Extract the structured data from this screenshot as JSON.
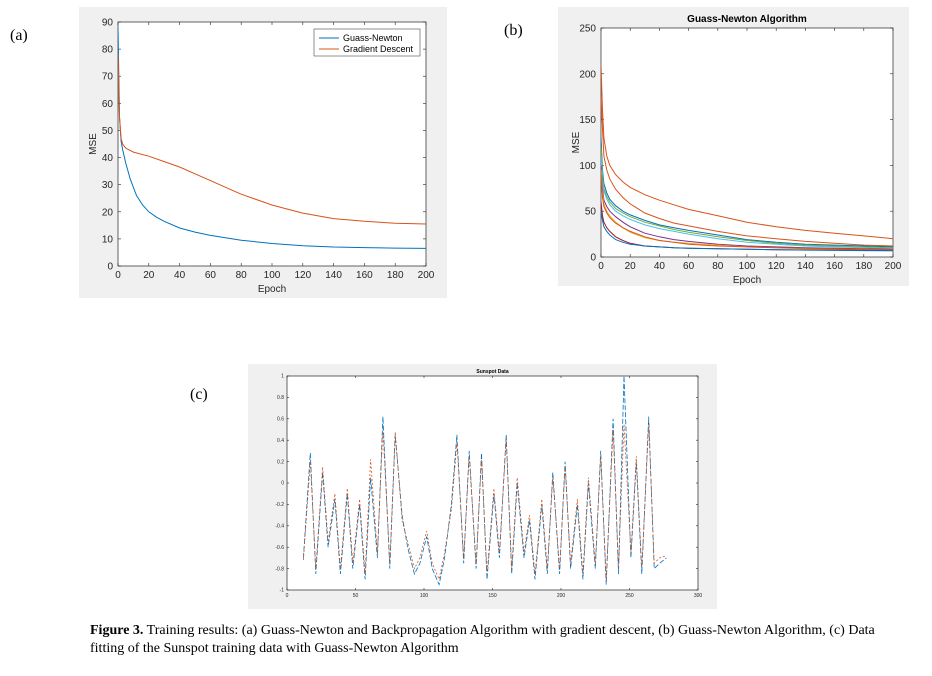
{
  "labels": {
    "a": "(a)",
    "b": "(b)",
    "c": "(c)"
  },
  "caption": {
    "bold": "Figure 3.",
    "text": " Training results: (a) Guass-Newton and Backpropagation Algorithm with gradient descent, (b) Guass-Newton Algorithm, (c) Data fitting of the Sunspot training data with Guass-Newton  Algorithm"
  },
  "colors": {
    "blue": "#0072bd",
    "orange": "#d95319"
  },
  "chart_data": [
    {
      "id": "a",
      "type": "line",
      "title": "",
      "xlabel": "Epoch",
      "ylabel": "MSE",
      "xlim": [
        0,
        200
      ],
      "ylim": [
        0,
        90
      ],
      "xticks": [
        0,
        20,
        40,
        60,
        80,
        100,
        120,
        140,
        160,
        180,
        200
      ],
      "yticks": [
        0,
        10,
        20,
        30,
        40,
        50,
        60,
        70,
        80,
        90
      ],
      "legend": "top-right",
      "series": [
        {
          "name": "Guass-Newton",
          "color": "#0072bd",
          "x": [
            0,
            1,
            2,
            3,
            5,
            8,
            12,
            16,
            20,
            25,
            30,
            40,
            50,
            60,
            80,
            100,
            120,
            140,
            160,
            180,
            200
          ],
          "y": [
            88,
            55,
            46,
            43,
            38,
            32,
            26,
            22.5,
            20,
            18,
            16.5,
            14,
            12.5,
            11.3,
            9.5,
            8.3,
            7.5,
            7,
            6.8,
            6.6,
            6.5
          ]
        },
        {
          "name": "Gradient Descent",
          "color": "#d95319",
          "x": [
            0,
            1,
            2,
            3,
            5,
            10,
            20,
            30,
            40,
            50,
            60,
            70,
            80,
            90,
            100,
            110,
            120,
            140,
            160,
            180,
            200
          ],
          "y": [
            78,
            55,
            47,
            45,
            43.5,
            42,
            40.5,
            38.5,
            36.5,
            34,
            31.5,
            29,
            26.5,
            24.5,
            22.5,
            21,
            19.5,
            17.5,
            16.5,
            15.8,
            15.5
          ]
        }
      ]
    },
    {
      "id": "b",
      "type": "line",
      "title": "Guass-Newton Algorithm",
      "xlabel": "Epoch",
      "ylabel": "MSE",
      "xlim": [
        0,
        200
      ],
      "ylim": [
        0,
        250
      ],
      "xticks": [
        0,
        20,
        40,
        60,
        80,
        100,
        120,
        140,
        160,
        180,
        200
      ],
      "yticks": [
        0,
        50,
        100,
        150,
        200,
        250
      ],
      "x": [
        0,
        1,
        2,
        4,
        6,
        10,
        15,
        20,
        30,
        40,
        50,
        60,
        80,
        100,
        120,
        140,
        160,
        180,
        200
      ],
      "series": [
        {
          "color": "#d95319",
          "y": [
            210,
            160,
            130,
            110,
            100,
            90,
            82,
            76,
            68,
            62,
            57,
            52,
            45,
            38,
            33,
            29,
            26,
            23,
            20
          ]
        },
        {
          "color": "#d95319",
          "y": [
            175,
            140,
            110,
            95,
            85,
            74,
            65,
            58,
            48,
            42,
            37,
            34,
            28,
            23,
            20,
            17,
            15,
            13,
            12
          ]
        },
        {
          "color": "#0072bd",
          "y": [
            130,
            95,
            80,
            70,
            63,
            56,
            50,
            46,
            40,
            35,
            32,
            29,
            24,
            19,
            16,
            14,
            13,
            12,
            11
          ]
        },
        {
          "color": "#77ac30",
          "y": [
            120,
            90,
            75,
            66,
            60,
            53,
            48,
            44,
            38,
            34,
            30,
            27,
            22,
            18,
            15,
            13,
            12,
            11,
            10
          ]
        },
        {
          "color": "#4dbeee",
          "y": [
            110,
            85,
            72,
            63,
            57,
            50,
            45,
            41,
            35,
            31,
            28,
            25,
            20,
            16,
            14,
            12,
            11,
            10,
            9
          ]
        },
        {
          "color": "#7e2f8e",
          "y": [
            100,
            75,
            62,
            55,
            50,
            44,
            38,
            33,
            26,
            22,
            19,
            17,
            14,
            12,
            11,
            10,
            9.5,
            9,
            8.5
          ]
        },
        {
          "color": "#edb120",
          "y": [
            95,
            70,
            58,
            50,
            45,
            38,
            32,
            27,
            21,
            18,
            16,
            15,
            13,
            11,
            10,
            9,
            8.5,
            8,
            7.5
          ]
        },
        {
          "color": "#a2142f",
          "y": [
            60,
            45,
            38,
            32,
            28,
            22,
            18,
            15,
            12,
            11,
            10,
            9.5,
            9,
            8.5,
            8,
            7.8,
            7.5,
            7.3,
            7
          ]
        },
        {
          "color": "#0072bd",
          "y": [
            50,
            40,
            33,
            28,
            24,
            19,
            16,
            14,
            12,
            11,
            10,
            9.5,
            9,
            8.5,
            8,
            7.5,
            7.2,
            7,
            6.8
          ]
        },
        {
          "color": "#d95319",
          "y": [
            90,
            65,
            55,
            48,
            43,
            37,
            32,
            28,
            22,
            18,
            16,
            14,
            12,
            11,
            10,
            9.5,
            9,
            8.5,
            8
          ]
        }
      ]
    },
    {
      "id": "c",
      "type": "line",
      "title": "Sunspot Data",
      "xlim": [
        0,
        300
      ],
      "ylim": [
        -1,
        1
      ],
      "xticks": [
        0,
        50,
        100,
        150,
        200,
        250,
        300
      ],
      "yticks": [
        -1,
        -0.8,
        -0.6,
        -0.4,
        -0.2,
        0,
        0.2,
        0.4,
        0.6,
        0.8,
        1
      ],
      "x": [
        12,
        17,
        21,
        26,
        30,
        35,
        39,
        44,
        48,
        53,
        57,
        61,
        66,
        70,
        75,
        79,
        84,
        88,
        93,
        97,
        102,
        106,
        111,
        115,
        120,
        124,
        129,
        133,
        138,
        142,
        146,
        151,
        155,
        160,
        164,
        168,
        173,
        177,
        181,
        186,
        190,
        194,
        199,
        203,
        207,
        212,
        216,
        220,
        225,
        229,
        233,
        238,
        242,
        246,
        251,
        255,
        259,
        264,
        268,
        272,
        277
      ],
      "series": [
        {
          "color": "#0072bd",
          "y": [
            -0.7,
            0.28,
            -0.85,
            0.1,
            -0.6,
            -0.15,
            -0.85,
            -0.1,
            -0.8,
            -0.2,
            -0.9,
            0.05,
            -0.7,
            0.62,
            -0.8,
            0.45,
            -0.3,
            -0.6,
            -0.85,
            -0.75,
            -0.5,
            -0.8,
            -0.95,
            -0.7,
            -0.2,
            0.45,
            -0.75,
            0.3,
            -0.8,
            0.28,
            -0.9,
            -0.1,
            -0.7,
            0.45,
            -0.85,
            0.0,
            -0.7,
            -0.35,
            -0.9,
            -0.2,
            -0.85,
            0.1,
            -0.85,
            0.2,
            -0.8,
            -0.2,
            -0.9,
            0.0,
            -0.8,
            0.3,
            -0.95,
            0.6,
            -0.85,
            1.0,
            -0.7,
            0.2,
            -0.85,
            0.62,
            -0.8,
            -0.75,
            -0.7
          ]
        },
        {
          "color": "#d95319",
          "y": [
            -0.72,
            0.2,
            -0.8,
            0.15,
            -0.55,
            -0.1,
            -0.8,
            -0.05,
            -0.75,
            -0.15,
            -0.85,
            0.22,
            -0.65,
            0.5,
            -0.75,
            0.48,
            -0.35,
            -0.55,
            -0.8,
            -0.7,
            -0.45,
            -0.75,
            -0.9,
            -0.65,
            -0.25,
            0.38,
            -0.7,
            0.25,
            -0.75,
            0.22,
            -0.85,
            -0.05,
            -0.65,
            0.4,
            -0.8,
            0.05,
            -0.65,
            -0.3,
            -0.85,
            -0.15,
            -0.8,
            0.05,
            -0.8,
            0.15,
            -0.75,
            -0.15,
            -0.85,
            0.05,
            -0.75,
            0.25,
            -0.9,
            0.5,
            -0.8,
            0.55,
            -0.65,
            0.25,
            -0.8,
            0.55,
            -0.75,
            -0.7,
            -0.68
          ]
        }
      ]
    }
  ]
}
